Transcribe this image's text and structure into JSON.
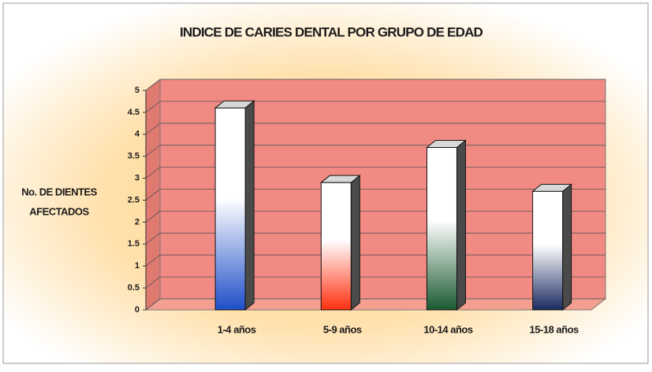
{
  "chart_data": {
    "type": "bar3d",
    "title": "INDICE DE CARIES DENTAL POR GRUPO DE EDAD",
    "y_label": [
      "No. DE DIENTES",
      "AFECTADOS"
    ],
    "categories": [
      "1-4 años",
      "5-9 años",
      "10-14 años",
      "15-18 años"
    ],
    "values": [
      4.6,
      2.9,
      3.7,
      2.7
    ],
    "colors": [
      "#1f4fc8",
      "#ff3010",
      "#1a5a30",
      "#1a2a60"
    ],
    "wall_color": "#f28a84",
    "ylim": [
      0,
      5
    ],
    "yticks": [
      0,
      0.5,
      1,
      1.5,
      2,
      2.5,
      3,
      3.5,
      4,
      4.5,
      5
    ],
    "grid": true
  }
}
